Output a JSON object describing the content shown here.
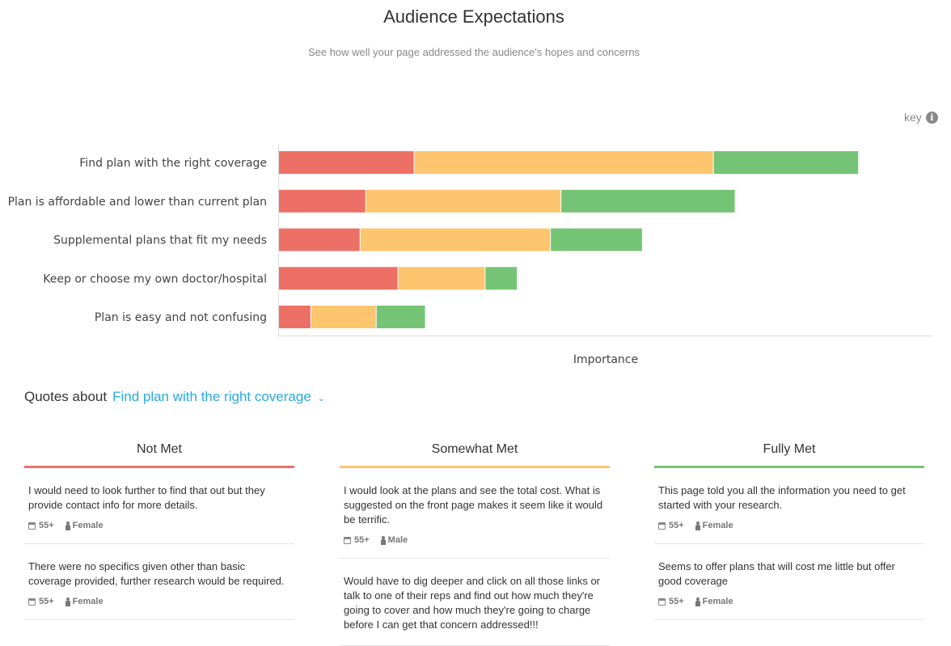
{
  "header": {
    "title": "Audience Expectations",
    "subtitle": "See how well your page addressed the audience's hopes and concerns",
    "key_label": "key",
    "info_icon": "i"
  },
  "chart_data": {
    "type": "bar",
    "orientation": "horizontal",
    "stacked": true,
    "categories": [
      "Find plan with the right coverage",
      "Plan is affordable and lower than current plan",
      "Supplemental plans that fit my needs",
      "Keep or choose my own doctor/hospital",
      "Plan is easy and not confusing"
    ],
    "series": [
      {
        "name": "Not Met",
        "color": "#ed7067",
        "values": [
          168,
          108,
          101,
          148,
          40
        ]
      },
      {
        "name": "Somewhat Met",
        "color": "#fdc56e",
        "values": [
          371,
          242,
          236,
          108,
          81
        ]
      },
      {
        "name": "Fully Met",
        "color": "#75c476",
        "values": [
          180,
          216,
          114,
          40,
          61
        ]
      }
    ],
    "xlabel": "Importance",
    "ylabel": "",
    "xlim": [
      0,
      810
    ],
    "grid": false
  },
  "quotes": {
    "label": "Quotes about",
    "topic": "Find plan with the right coverage",
    "columns": [
      {
        "title": "Not Met",
        "color": "#ed7067",
        "items": [
          {
            "text": "I would need to look further to find that out but they provide contact info for more details.",
            "age": "55+",
            "gender": "Female"
          },
          {
            "text": "There were no specifics given other than basic coverage provided, further research would be required.",
            "age": "55+",
            "gender": "Female"
          }
        ]
      },
      {
        "title": "Somewhat Met",
        "color": "#fdc56e",
        "items": [
          {
            "text": "I would look at the plans and see the total cost. What is suggested on the front page makes it seem like it would be terrific.",
            "age": "55+",
            "gender": "Male"
          },
          {
            "text": "Would have to dig deeper and click on all those links or talk to one of their reps and find out how much they're going to cover and how much they're going to charge before I can get that concern addressed!!!",
            "age": "",
            "gender": ""
          }
        ]
      },
      {
        "title": "Fully Met",
        "color": "#75c476",
        "items": [
          {
            "text": "This page told you all the information you need to get started with your research.",
            "age": "55+",
            "gender": "Female"
          },
          {
            "text": "Seems to offer plans that will cost me little but offer good coverage",
            "age": "55+",
            "gender": "Female"
          }
        ]
      }
    ]
  }
}
